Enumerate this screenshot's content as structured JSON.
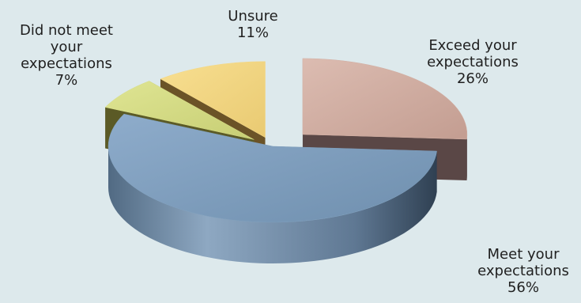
{
  "chart_data": {
    "type": "pie",
    "style": "3d-exploded",
    "categories": [
      "Exceed your expectations",
      "Meet your expectations",
      "Did not meet your expectations",
      "Unsure"
    ],
    "values": [
      26,
      56,
      7,
      11
    ],
    "value_labels": [
      "26%",
      "56%",
      "7%",
      "11%"
    ],
    "label_lines": [
      [
        "Exceed your",
        "expectations",
        "26%"
      ],
      [
        "Meet your",
        "expectations",
        "56%"
      ],
      [
        "Did not meet",
        "your",
        "expectations",
        "7%"
      ],
      [
        "Unsure",
        "11%"
      ]
    ],
    "colors": [
      "#d2aea2",
      "#7f9fbd",
      "#d6dd85",
      "#f4d784"
    ],
    "side_colors": [
      "#5a4746",
      "#37485a",
      "#5b5a26",
      "#6b5327"
    ],
    "background": "#dde9ec",
    "legend": "none",
    "title": ""
  }
}
